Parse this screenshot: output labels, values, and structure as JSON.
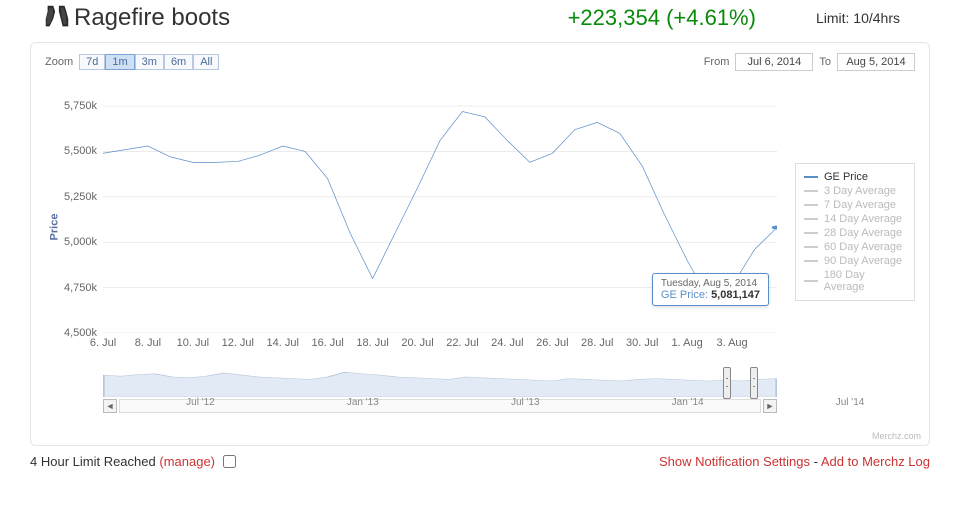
{
  "header": {
    "title": "Ragefire boots",
    "change_value": "+223,354",
    "change_pct": "(+4.61%)",
    "limit_label": "Limit: 10/4hrs"
  },
  "zoom": {
    "label": "Zoom",
    "options": [
      "7d",
      "1m",
      "3m",
      "6m",
      "All"
    ],
    "selected": "1m"
  },
  "date_range": {
    "from_label": "From",
    "from_value": "Jul 6, 2014",
    "to_label": "To",
    "to_value": "Aug 5, 2014"
  },
  "chart": {
    "type": "line",
    "ylabel": "Price",
    "y_ticks": [
      4500000,
      4750000,
      5000000,
      5250000,
      5500000,
      5750000
    ],
    "y_tick_labels": [
      "4,500k",
      "4,750k",
      "5,000k",
      "5,250k",
      "5,500k",
      "5,750k"
    ],
    "ylim": [
      4500000,
      5800000
    ],
    "x_labels": [
      "6. Jul",
      "8. Jul",
      "10. Jul",
      "12. Jul",
      "14. Jul",
      "16. Jul",
      "18. Jul",
      "20. Jul",
      "22. Jul",
      "24. Jul",
      "26. Jul",
      "28. Jul",
      "30. Jul",
      "1. Aug",
      "3. Aug"
    ],
    "series_color": "#5a8ecb",
    "grid_color": "#e5e5e5",
    "background_color": "#ffffff",
    "line_width": 2,
    "data": [
      {
        "x": 0,
        "y": 5490000
      },
      {
        "x": 1,
        "y": 5510000
      },
      {
        "x": 2,
        "y": 5530000
      },
      {
        "x": 3,
        "y": 5470000
      },
      {
        "x": 4,
        "y": 5440000
      },
      {
        "x": 5,
        "y": 5440000
      },
      {
        "x": 6,
        "y": 5445000
      },
      {
        "x": 7,
        "y": 5480000
      },
      {
        "x": 8,
        "y": 5530000
      },
      {
        "x": 9,
        "y": 5500000
      },
      {
        "x": 10,
        "y": 5350000
      },
      {
        "x": 11,
        "y": 5050000
      },
      {
        "x": 12,
        "y": 4800000
      },
      {
        "x": 13,
        "y": 5050000
      },
      {
        "x": 14,
        "y": 5300000
      },
      {
        "x": 15,
        "y": 5560000
      },
      {
        "x": 16,
        "y": 5720000
      },
      {
        "x": 17,
        "y": 5690000
      },
      {
        "x": 18,
        "y": 5560000
      },
      {
        "x": 19,
        "y": 5440000
      },
      {
        "x": 20,
        "y": 5490000
      },
      {
        "x": 21,
        "y": 5620000
      },
      {
        "x": 22,
        "y": 5660000
      },
      {
        "x": 23,
        "y": 5600000
      },
      {
        "x": 24,
        "y": 5420000
      },
      {
        "x": 25,
        "y": 5150000
      },
      {
        "x": 26,
        "y": 4900000
      },
      {
        "x": 27,
        "y": 4680000
      },
      {
        "x": 28,
        "y": 4760000
      },
      {
        "x": 29,
        "y": 4960000
      },
      {
        "x": 30,
        "y": 5081147
      }
    ],
    "x_count": 31
  },
  "tooltip": {
    "date": "Tuesday, Aug 5, 2014",
    "label": "GE Price:",
    "value": "5,081,147"
  },
  "legend": {
    "items": [
      {
        "label": "GE Price",
        "active": true
      },
      {
        "label": "3 Day Average",
        "active": false
      },
      {
        "label": "7 Day Average",
        "active": false
      },
      {
        "label": "14 Day Average",
        "active": false
      },
      {
        "label": "28 Day Average",
        "active": false
      },
      {
        "label": "60 Day Average",
        "active": false
      },
      {
        "label": "90 Day Average",
        "active": false
      },
      {
        "label": "180 Day Average",
        "active": false
      }
    ]
  },
  "navigator": {
    "x_labels": [
      "Jul '12",
      "Jan '13",
      "Jul '13",
      "Jan '14",
      "Jul '14"
    ],
    "x_positions_pct": [
      12,
      32,
      52,
      72,
      92
    ],
    "range_start_pct": 92,
    "range_end_pct": 96,
    "spark_color": "#b8c8da",
    "spark_fill": "#e2ebf5",
    "spark": [
      55,
      52,
      56,
      58,
      50,
      48,
      52,
      60,
      55,
      50,
      48,
      46,
      44,
      50,
      62,
      58,
      55,
      50,
      48,
      46,
      44,
      50,
      48,
      46,
      44,
      42,
      40,
      46,
      44,
      42,
      40,
      44,
      46,
      44,
      42,
      40,
      42,
      40,
      44,
      46
    ]
  },
  "footer": {
    "limit_text": "4 Hour Limit Reached",
    "manage_text": "(manage)",
    "show_settings": "Show Notification Settings",
    "add_log": "Add to Merchz Log"
  },
  "watermark": "Merchz.com"
}
